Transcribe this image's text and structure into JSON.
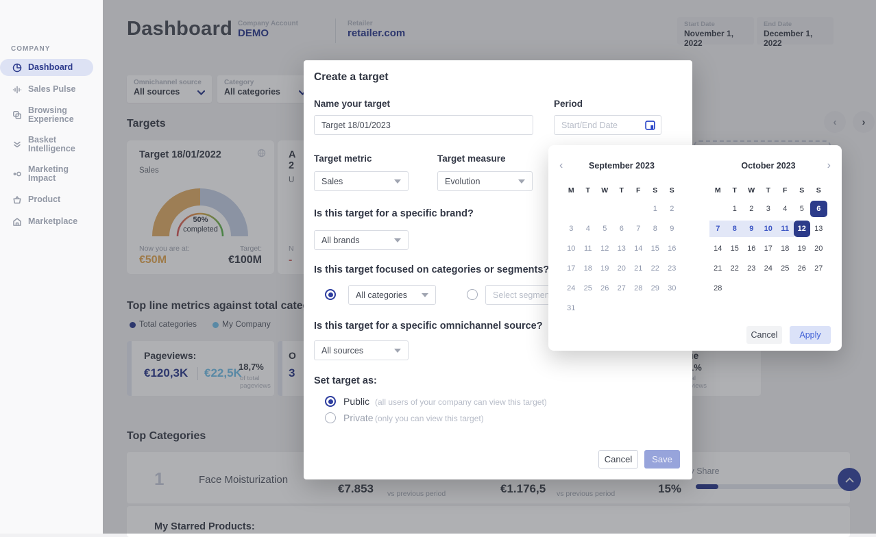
{
  "sidebar": {
    "section_label": "COMPANY",
    "items": [
      {
        "label": "Dashboard",
        "icon": "pie-chart-icon",
        "active": true
      },
      {
        "label": "Sales Pulse",
        "icon": "pulse-icon",
        "active": false
      },
      {
        "label": "Browsing\nExperience",
        "icon": "layers-icon",
        "active": false
      },
      {
        "label": "Basket\nIntelligence",
        "icon": "basket-intel-icon",
        "active": false
      },
      {
        "label": "Marketing\nImpact",
        "icon": "dots-icon",
        "active": false
      },
      {
        "label": "Product",
        "icon": "basket-icon",
        "active": false
      },
      {
        "label": "Marketplace",
        "icon": "storefront-icon",
        "active": false
      }
    ]
  },
  "header": {
    "title": "Dashboard",
    "company_account": {
      "label": "Company Account",
      "value": "DEMO"
    },
    "retailer": {
      "label": "Retailer",
      "value": "retailer.com"
    },
    "date_range": {
      "start_label": "Start Date",
      "start_value": "November 1, 2022",
      "end_label": "End Date",
      "end_value": "December 1, 2022"
    }
  },
  "filters": {
    "omnichannel": {
      "label": "Omnichannel source",
      "value": "All sources"
    },
    "category": {
      "label": "Category",
      "value": "All categories"
    }
  },
  "targets": {
    "heading": "Targets",
    "card1": {
      "title": "Target 18/01/2022",
      "metric": "Sales",
      "gauge": {
        "completed_pct": 50,
        "center_line1": "50%",
        "center_line2": "completed",
        "progress_color": "#e2ae68",
        "remaining_color": "#c6d1e6"
      },
      "now_label": "Now you are at:",
      "now_value": "€50M",
      "target_label": "Target:",
      "target_value": "€100M"
    },
    "card2_fragments": {
      "title_line1": "A",
      "title_line2": "2",
      "metric": "U",
      "now_label": "N",
      "now_value": "-"
    }
  },
  "metrics": {
    "heading": "Top line metrics against total categories",
    "legend": [
      {
        "label": "Total categories",
        "color": "#2e3d8f"
      },
      {
        "label": "My Company",
        "color": "#74c0e8"
      }
    ],
    "pageviews_card": {
      "title": "Pageviews:",
      "total_value": "€120,3K",
      "company_value": "€22,5K",
      "percent": "18,7%",
      "caption_line1": "of total",
      "caption_line2": "pageviews"
    },
    "card2_fragments": {
      "title": "O",
      "value": "3"
    },
    "card3_fragments": {
      "title": "ue",
      "percent": "1%",
      "caption_line1": "tal",
      "caption_line2": "eviews"
    }
  },
  "top_categories": {
    "heading": "Top Categories",
    "share_header": "Category Share",
    "row": {
      "rank": "1",
      "name": "Face Moisturization",
      "sales_value": "€7.853",
      "sales_caption": "vs previous period",
      "units_value": "€1.176,5",
      "units_caption": "vs previous period",
      "share": "15%",
      "share_pct": 15
    },
    "starred_heading": "My Starred Products:"
  },
  "modal": {
    "title": "Create a target",
    "name_label": "Name your target",
    "name_value": "Target 18/01/2023",
    "period_label": "Period",
    "period_placeholder": "Start/End Date",
    "metric_label": "Target metric",
    "metric_value": "Sales",
    "measure_label": "Target measure",
    "measure_value": "Evolution",
    "brand_question": "Is this target for a specific brand?",
    "brand_value": "All brands",
    "catseg_question": "Is this target focused on categories or segments?",
    "categories_value": "All categories",
    "segment_placeholder": "Select segment",
    "omni_question": "Is this target for a specific omnichannel source?",
    "omni_value": "All sources",
    "set_target_label": "Set target as:",
    "public_label": "Public",
    "public_caption": "(all users of your company can view this target)",
    "private_label": "Private",
    "private_caption": "(only you can view this target)",
    "cancel_label": "Cancel",
    "save_label": "Save"
  },
  "calendar": {
    "months": [
      {
        "title": "September 2023",
        "nav": "prev",
        "muted": true,
        "weekdays": [
          "M",
          "T",
          "W",
          "T",
          "F",
          "S",
          "S"
        ],
        "weeks": [
          [
            "",
            "",
            "",
            "",
            "",
            "1",
            "2"
          ],
          [
            "3",
            "4",
            "5",
            "6",
            "7",
            "8",
            "9"
          ],
          [
            "10",
            "11",
            "12",
            "13",
            "14",
            "15",
            "16"
          ],
          [
            "17",
            "18",
            "19",
            "20",
            "21",
            "22",
            "23"
          ],
          [
            "24",
            "25",
            "26",
            "27",
            "28",
            "29",
            "30"
          ],
          [
            "31",
            "",
            "",
            "",
            "",
            "",
            ""
          ]
        ]
      },
      {
        "title": "October 2023",
        "nav": "next",
        "muted": false,
        "weekdays": [
          "M",
          "T",
          "W",
          "T",
          "F",
          "S",
          "S"
        ],
        "weeks": [
          [
            "",
            "1",
            "2",
            "3",
            "4",
            "5",
            "6"
          ],
          [
            "7",
            "8",
            "9",
            "10",
            "11",
            "12",
            "13"
          ],
          [
            "14",
            "15",
            "16",
            "17",
            "18",
            "19",
            "20"
          ],
          [
            "21",
            "22",
            "23",
            "24",
            "25",
            "26",
            "27"
          ],
          [
            "28",
            "",
            "",
            "",
            "",
            "",
            ""
          ]
        ],
        "selected": [
          "6",
          "12"
        ],
        "in_range": [
          "7",
          "8",
          "9",
          "10",
          "11"
        ]
      }
    ],
    "cancel_label": "Cancel",
    "apply_label": "Apply"
  },
  "colors": {
    "primary_navy": "#2e3d8f",
    "bright_blue": "#2945c8",
    "light_blue": "#74c0e8",
    "gauge_progress": "#e2ae68",
    "gauge_remaining": "#c6d1e6",
    "now_value_orange": "#e4a953",
    "negative_red": "#d46a6a",
    "range_bg": "#e2e7f7",
    "range_text": "#3b55c4",
    "save_bg": "#97a4db",
    "apply_bg": "#dbe2f8",
    "apply_text": "#3f5fd6"
  }
}
